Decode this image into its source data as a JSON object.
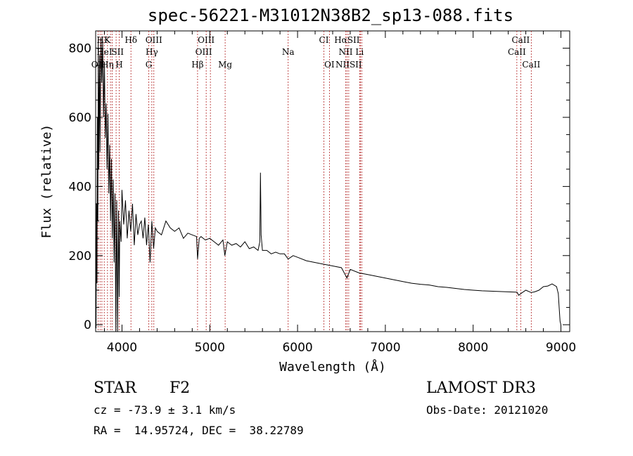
{
  "figure": {
    "title": "spec-56221-M31012N38B2_sp13-088.fits",
    "object_class": "STAR",
    "subclass": "F2",
    "survey": "LAMOST DR3",
    "velocity": "cz = -73.9 ± 3.1 km/s",
    "obs_date": "Obs-Date: 20121020",
    "coords": "RA =  14.95724, DEC =  38.22789"
  },
  "chart_data": {
    "type": "line",
    "title": "spec-56221-M31012N38B2_sp13-088.fits",
    "xlabel": "Wavelength (Å)",
    "ylabel": "Flux (relative)",
    "xlim": [
      3700,
      9100
    ],
    "ylim": [
      -20,
      850
    ],
    "xticks": [
      4000,
      5000,
      6000,
      7000,
      8000,
      9000
    ],
    "yticks": [
      0,
      200,
      400,
      600,
      800
    ],
    "series": [
      {
        "name": "flux",
        "x": [
          3700,
          3705,
          3710,
          3715,
          3720,
          3725,
          3730,
          3735,
          3740,
          3745,
          3750,
          3760,
          3770,
          3780,
          3790,
          3800,
          3810,
          3820,
          3830,
          3840,
          3850,
          3860,
          3870,
          3880,
          3890,
          3900,
          3910,
          3920,
          3930,
          3933,
          3940,
          3950,
          3960,
          3968,
          3975,
          3990,
          4000,
          4020,
          4040,
          4060,
          4080,
          4100,
          4120,
          4140,
          4160,
          4180,
          4200,
          4220,
          4240,
          4260,
          4280,
          4300,
          4320,
          4340,
          4360,
          4380,
          4400,
          4450,
          4500,
          4550,
          4600,
          4650,
          4700,
          4750,
          4800,
          4850,
          4861,
          4880,
          4900,
          4950,
          5000,
          5050,
          5100,
          5150,
          5172,
          5200,
          5250,
          5300,
          5350,
          5400,
          5450,
          5500,
          5550,
          5570,
          5577,
          5585,
          5600,
          5650,
          5700,
          5750,
          5800,
          5850,
          5893,
          5950,
          6000,
          6100,
          6200,
          6300,
          6400,
          6500,
          6563,
          6600,
          6700,
          6800,
          6900,
          7000,
          7100,
          7200,
          7300,
          7400,
          7500,
          7600,
          7700,
          7800,
          7900,
          8000,
          8100,
          8200,
          8300,
          8400,
          8500,
          8520,
          8542,
          8600,
          8662,
          8700,
          8750,
          8800,
          8850,
          8900,
          8950,
          8970,
          8980,
          8990,
          9000
        ],
        "y": [
          10,
          -10,
          350,
          120,
          600,
          300,
          820,
          450,
          650,
          780,
          500,
          830,
          700,
          820,
          600,
          760,
          540,
          640,
          450,
          610,
          380,
          520,
          300,
          480,
          250,
          420,
          180,
          380,
          -20,
          120,
          360,
          -20,
          330,
          80,
          300,
          240,
          390,
          290,
          360,
          250,
          330,
          270,
          350,
          230,
          320,
          260,
          290,
          300,
          250,
          310,
          230,
          290,
          180,
          300,
          220,
          280,
          270,
          260,
          300,
          280,
          270,
          280,
          250,
          265,
          260,
          255,
          190,
          250,
          255,
          245,
          250,
          240,
          230,
          245,
          200,
          240,
          230,
          235,
          225,
          240,
          220,
          225,
          215,
          240,
          440,
          260,
          215,
          215,
          205,
          210,
          205,
          205,
          190,
          200,
          195,
          185,
          180,
          175,
          170,
          165,
          135,
          160,
          150,
          145,
          140,
          135,
          130,
          125,
          120,
          117,
          115,
          110,
          108,
          105,
          102,
          100,
          98,
          97,
          96,
          95,
          94,
          85,
          90,
          100,
          93,
          95,
          100,
          110,
          112,
          118,
          110,
          90,
          50,
          10,
          0
        ]
      }
    ],
    "lines_top": [
      {
        "label": "HK",
        "x": 3790
      },
      {
        "label": "K",
        "x": 3833
      },
      {
        "label": "Hδ",
        "x": 4102
      },
      {
        "label": "OIII",
        "x": 4363
      },
      {
        "label": "OIII",
        "x": 4959
      },
      {
        "label": "CI",
        "x": 6300
      },
      {
        "label": "HαSII",
        "x": 6563
      },
      {
        "label": "CaII",
        "x": 8542
      }
    ],
    "lines_mid": [
      {
        "label": "HeI",
        "x": 3800
      },
      {
        "label": "SII",
        "x": 3950
      },
      {
        "label": "Hγ",
        "x": 4340
      },
      {
        "label": "OIII",
        "x": 4931
      },
      {
        "label": "Na",
        "x": 5893
      },
      {
        "label": "NII",
        "x": 6548
      },
      {
        "label": "Li",
        "x": 6707
      },
      {
        "label": "CaII",
        "x": 8498
      }
    ],
    "lines_low": [
      {
        "label": "OII",
        "x": 3727
      },
      {
        "label": "Hη",
        "x": 3835
      },
      {
        "label": "H",
        "x": 3968
      },
      {
        "label": "G",
        "x": 4305
      },
      {
        "label": "Hβ",
        "x": 4861
      },
      {
        "label": "Mg",
        "x": 5175
      },
      {
        "label": "OI",
        "x": 6363
      },
      {
        "label": "NIISII",
        "x": 6583
      },
      {
        "label": "CaII",
        "x": 8662
      }
    ],
    "marker_x": [
      3727,
      3750,
      3771,
      3798,
      3835,
      3869,
      3889,
      3933,
      3968,
      4102,
      4305,
      4340,
      4363,
      4861,
      4959,
      5007,
      5175,
      5893,
      6300,
      6363,
      6548,
      6563,
      6583,
      6707,
      6717,
      6731,
      8498,
      8542,
      8662
    ]
  }
}
